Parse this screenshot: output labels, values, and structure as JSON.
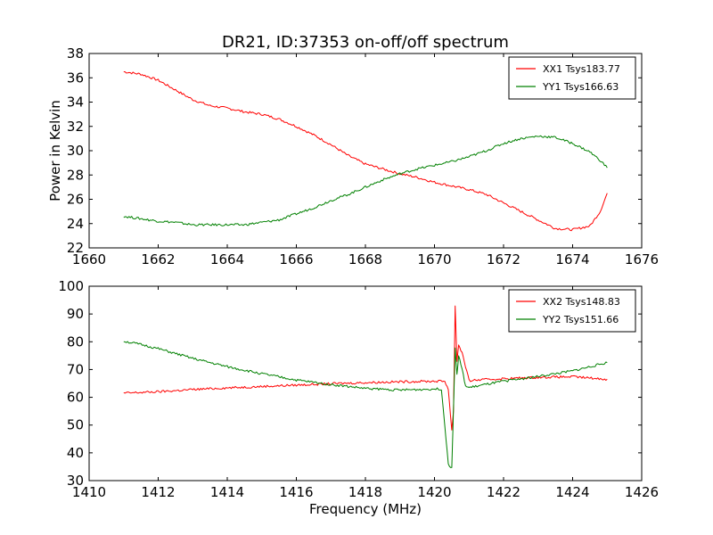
{
  "title": "DR21, ID:37353 on-off/off spectrum",
  "colors": {
    "red": "#ff0000",
    "green": "#008000"
  },
  "chart_data": [
    {
      "type": "line",
      "ylabel": "Power in Kelvin",
      "xlabel": "",
      "xlim": [
        1660,
        1676
      ],
      "ylim": [
        22,
        38
      ],
      "xticks": [
        "1660",
        "1662",
        "1664",
        "1666",
        "1668",
        "1670",
        "1672",
        "1674",
        "1676"
      ],
      "yticks": [
        "22",
        "24",
        "26",
        "28",
        "30",
        "32",
        "34",
        "36",
        "38"
      ],
      "legend_position": "top-right",
      "series": [
        {
          "name": "XX1 Tsys183.77",
          "color": "red",
          "x": [
            1661.0,
            1661.5,
            1662.0,
            1662.5,
            1663.0,
            1663.5,
            1664.0,
            1664.5,
            1665.0,
            1665.5,
            1666.0,
            1666.5,
            1667.0,
            1667.5,
            1668.0,
            1668.5,
            1669.0,
            1669.5,
            1670.0,
            1670.5,
            1671.0,
            1671.5,
            1672.0,
            1672.5,
            1673.0,
            1673.5,
            1674.0,
            1674.5,
            1674.8,
            1675.0
          ],
          "y": [
            36.5,
            36.3,
            35.8,
            35.0,
            34.2,
            33.7,
            33.5,
            33.2,
            33.0,
            32.6,
            32.0,
            31.3,
            30.5,
            29.6,
            28.9,
            28.5,
            28.1,
            27.8,
            27.4,
            27.1,
            26.8,
            26.4,
            25.7,
            25.0,
            24.3,
            23.6,
            23.5,
            23.8,
            25.0,
            26.5
          ]
        },
        {
          "name": "YY1 Tsys166.63",
          "color": "green",
          "x": [
            1661.0,
            1661.5,
            1662.0,
            1662.5,
            1663.0,
            1663.5,
            1664.0,
            1664.5,
            1665.0,
            1665.5,
            1666.0,
            1666.5,
            1667.0,
            1667.5,
            1668.0,
            1668.5,
            1669.0,
            1669.5,
            1670.0,
            1670.5,
            1671.0,
            1671.5,
            1672.0,
            1672.5,
            1673.0,
            1673.5,
            1674.0,
            1674.5,
            1674.8,
            1675.0
          ],
          "y": [
            24.6,
            24.4,
            24.2,
            24.1,
            23.9,
            23.9,
            23.9,
            23.9,
            24.1,
            24.3,
            24.8,
            25.3,
            25.9,
            26.4,
            27.0,
            27.6,
            28.1,
            28.5,
            28.8,
            29.1,
            29.5,
            30.0,
            30.6,
            31.0,
            31.2,
            31.1,
            30.6,
            29.9,
            29.2,
            28.6
          ]
        }
      ]
    },
    {
      "type": "line",
      "ylabel": "",
      "xlabel": "Frequency (MHz)",
      "xlim": [
        1410,
        1426
      ],
      "ylim": [
        30,
        100
      ],
      "xticks": [
        "1410",
        "1412",
        "1414",
        "1416",
        "1418",
        "1420",
        "1422",
        "1424",
        "1426"
      ],
      "yticks": [
        "30",
        "40",
        "50",
        "60",
        "70",
        "80",
        "90",
        "100"
      ],
      "legend_position": "top-right",
      "series": [
        {
          "name": "XX2 Tsys148.83",
          "color": "red",
          "x": [
            1411.0,
            1412.0,
            1413.0,
            1414.0,
            1415.0,
            1416.0,
            1417.0,
            1418.0,
            1419.0,
            1420.0,
            1420.3,
            1420.4,
            1420.5,
            1420.55,
            1420.6,
            1420.65,
            1420.7,
            1420.8,
            1420.9,
            1421.0,
            1421.2,
            1422.0,
            1423.0,
            1424.0,
            1425.0
          ],
          "y": [
            61.5,
            62.0,
            62.8,
            63.4,
            63.9,
            64.4,
            64.9,
            65.3,
            65.6,
            65.8,
            65.8,
            63.0,
            48.0,
            55.0,
            93.0,
            73.0,
            79.0,
            76.0,
            71.0,
            66.0,
            66.2,
            66.7,
            67.2,
            67.4,
            66.5
          ]
        },
        {
          "name": "YY2 Tsys151.66",
          "color": "green",
          "x": [
            1411.0,
            1411.5,
            1412.0,
            1413.0,
            1414.0,
            1415.0,
            1416.0,
            1417.0,
            1418.0,
            1419.0,
            1420.0,
            1420.2,
            1420.3,
            1420.4,
            1420.5,
            1420.6,
            1420.65,
            1420.7,
            1420.8,
            1420.9,
            1421.0,
            1422.0,
            1423.0,
            1424.0,
            1425.0
          ],
          "y": [
            80.2,
            79.0,
            77.5,
            74.0,
            71.0,
            68.5,
            66.2,
            64.6,
            63.2,
            62.6,
            63.0,
            63.0,
            50.0,
            36.0,
            34.5,
            78.0,
            68.0,
            75.0,
            70.0,
            64.0,
            63.5,
            65.8,
            67.5,
            69.5,
            72.5
          ]
        }
      ]
    }
  ]
}
